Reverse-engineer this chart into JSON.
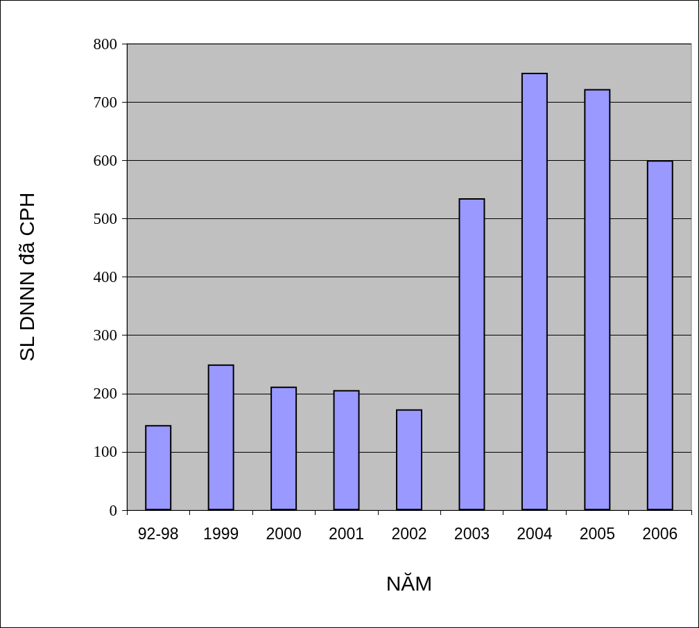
{
  "chart_data": {
    "type": "bar",
    "xlabel": "NĂM",
    "ylabel": "SL DNNN đã CPH",
    "categories": [
      "92-98",
      "1999",
      "2000",
      "2001",
      "2002",
      "2003",
      "2004",
      "2005",
      "2006"
    ],
    "values": [
      146,
      250,
      212,
      206,
      173,
      535,
      750,
      722,
      600
    ],
    "color": "#9999ff",
    "ylim": [
      0,
      800
    ],
    "yticks": [
      0,
      100,
      200,
      300,
      400,
      500,
      600,
      700,
      800
    ],
    "grid": "y"
  }
}
